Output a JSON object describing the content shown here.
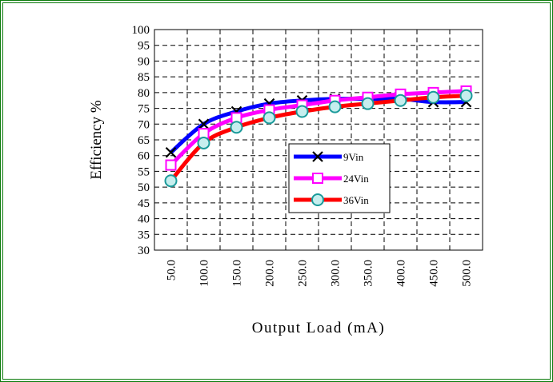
{
  "colors": {
    "frame": "#0a7a0a",
    "grid": "#000000"
  },
  "chart_data": {
    "type": "line",
    "title": "",
    "xlabel": "Output Load (mA)",
    "ylabel": "Efficiency %",
    "categories": [
      "50.0",
      "100.0",
      "150.0",
      "200.0",
      "250.0",
      "300.0",
      "350.0",
      "400.0",
      "450.0",
      "500.0"
    ],
    "ylim": [
      30,
      100
    ],
    "yticks": [
      30,
      35,
      40,
      45,
      50,
      55,
      60,
      65,
      70,
      75,
      80,
      85,
      90,
      95,
      100
    ],
    "grid": true,
    "legend_position": "center-right",
    "series": [
      {
        "name": "9Vin",
        "color": "#0000ff",
        "marker": "x-icon",
        "values": [
          61,
          70,
          74,
          76.5,
          77.5,
          78,
          78,
          78,
          77,
          77
        ]
      },
      {
        "name": "24Vin",
        "color": "#ff00ff",
        "marker": "square-icon",
        "values": [
          57,
          67,
          72,
          74.5,
          76,
          77.5,
          78.5,
          79.5,
          80,
          80.5
        ]
      },
      {
        "name": "36Vin",
        "color": "#ff0000",
        "marker": "circle-icon",
        "values": [
          52,
          64,
          69,
          72,
          74,
          75.5,
          76.5,
          77.5,
          78.5,
          79
        ]
      }
    ]
  }
}
